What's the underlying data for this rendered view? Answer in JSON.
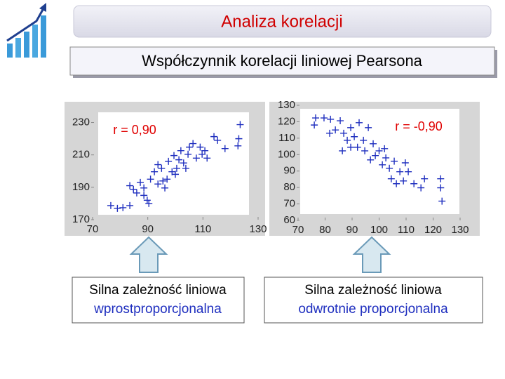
{
  "slide": {
    "title": "Analiza korelacji",
    "subtitle": "Współczynnik korelacji liniowej Pearsona",
    "captions": [
      {
        "line1": "Silna zależność liniowa",
        "line2": "wprostproporcjonalna"
      },
      {
        "line1": "Silna zależność liniowa",
        "line2": "odwrotnie proporcjonalna"
      }
    ]
  },
  "chart_data": [
    {
      "type": "scatter",
      "annotation": "r = 0,90",
      "annotation_color": "#e00000",
      "color": "#1f2fbf",
      "x": [
        76.6,
        79,
        81,
        83.5,
        83.5,
        84.8,
        86,
        87.3,
        88.6,
        89.8,
        90.4,
        91,
        92.4,
        93.7,
        95,
        96.2,
        97,
        97.5,
        98.8,
        99.5,
        100.5,
        101.3,
        102,
        103,
        103.8,
        104.6,
        105.1,
        106.4,
        107.6,
        109,
        109.7,
        110.7,
        111.5,
        114,
        115.3,
        118,
        122.7,
        123,
        123.5,
        100,
        95.5,
        88.6,
        93.7
      ],
      "values": [
        178.7,
        177,
        177.4,
        178.7,
        191,
        188.7,
        186.5,
        193,
        189.6,
        182,
        180,
        195,
        199.6,
        192,
        201.7,
        189.6,
        195,
        206,
        199.6,
        209.6,
        201.7,
        207,
        212.6,
        205,
        201.7,
        210.4,
        214.8,
        217,
        208,
        214.8,
        210.4,
        212.6,
        208,
        221.3,
        219,
        213.9,
        215.6,
        220,
        228.7,
        198,
        193.9,
        185,
        204
      ],
      "xlim": [
        70,
        130
      ],
      "ylim": [
        170,
        235
      ],
      "xticks": [
        70,
        90,
        110,
        130
      ],
      "yticks": [
        170,
        190,
        210,
        230
      ]
    },
    {
      "type": "scatter",
      "annotation": "r = -0,90",
      "annotation_color": "#e00000",
      "color": "#1f2fbf",
      "x": [
        76.5,
        79.6,
        76,
        82,
        83.8,
        85.6,
        86.9,
        88.2,
        89.5,
        90.8,
        92,
        92.6,
        94.2,
        94.7,
        96,
        96.8,
        97.8,
        98.6,
        100,
        101.2,
        102,
        102.5,
        103.8,
        104.5,
        105.6,
        106.4,
        107.7,
        109,
        109.7,
        110.8,
        112.9,
        115.5,
        116.8,
        122.8,
        122.8,
        123.3,
        86.4,
        89.5,
        81.7
      ],
      "values": [
        122.3,
        122.3,
        118,
        121.5,
        115,
        120.6,
        113,
        108.7,
        116.4,
        110.9,
        104.5,
        119.4,
        108.7,
        102.3,
        116.4,
        96.8,
        106.6,
        99.4,
        102.3,
        93.8,
        103.6,
        98,
        91.7,
        85.3,
        96,
        82.3,
        89.6,
        84,
        95,
        89.6,
        82.3,
        79.8,
        85.3,
        85.3,
        79.8,
        71.7,
        102.3,
        104.5,
        113
      ],
      "xlim": [
        70,
        130
      ],
      "ylim": [
        60,
        130
      ],
      "xticks": [
        70,
        80,
        90,
        100,
        110,
        120,
        130
      ],
      "yticks": [
        60,
        70,
        80,
        90,
        100,
        110,
        120,
        130
      ]
    }
  ]
}
